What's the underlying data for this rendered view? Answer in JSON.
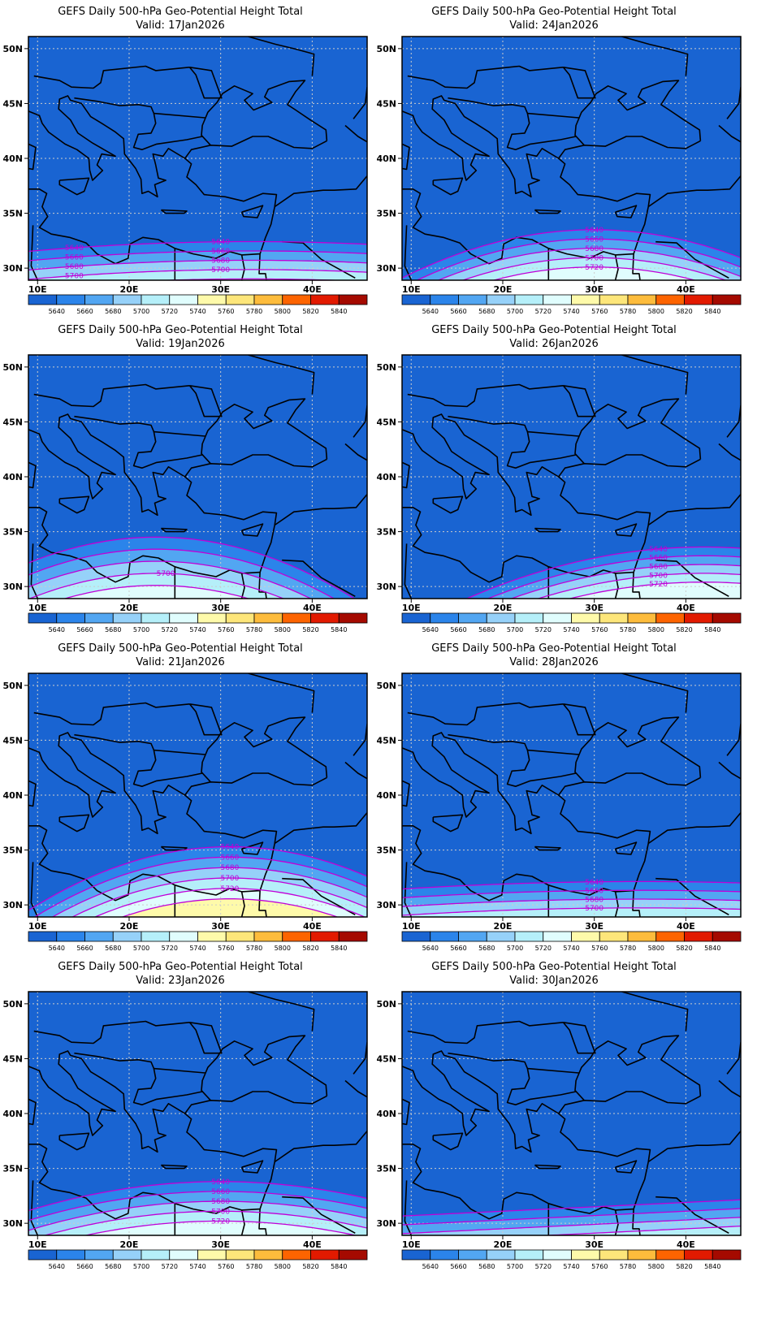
{
  "title": "GEFS Daily 500-hPa Geo-Potential Height Total",
  "valid_prefix": "Valid:",
  "lat_labels": [
    "30N",
    "35N",
    "40N",
    "45N",
    "50N"
  ],
  "lon_labels": [
    "10E",
    "20E",
    "30E",
    "40E"
  ],
  "colorbar": {
    "labels": [
      "5640",
      "5660",
      "5680",
      "5700",
      "5720",
      "5740",
      "5760",
      "5780",
      "5800",
      "5820",
      "5840"
    ],
    "colors": [
      "#1964d2",
      "#2b84ea",
      "#52a6f2",
      "#96d1f9",
      "#b5eff9",
      "#e0fdfd",
      "#fefaaa",
      "#fde67a",
      "#fdbc3c",
      "#fd6400",
      "#e21a00",
      "#a50a00"
    ]
  },
  "contour_color": "#c000d8",
  "panels": [
    {
      "valid": "17Jan2026",
      "contour_labels": [
        "5640",
        "5660",
        "5680",
        "5700",
        "5640",
        "5660",
        "5680",
        "5700"
      ]
    },
    {
      "valid": "24Jan2026",
      "contour_labels": [
        "5640",
        "5660",
        "5680",
        "5700",
        "5720"
      ]
    },
    {
      "valid": "19Jan2026",
      "contour_labels": [
        "5700"
      ]
    },
    {
      "valid": "26Jan2026",
      "contour_labels": [
        "5640",
        "5660",
        "5680",
        "5700",
        "5720"
      ]
    },
    {
      "valid": "21Jan2026",
      "contour_labels": [
        "5640",
        "5660",
        "5680",
        "5700",
        "5720"
      ]
    },
    {
      "valid": "28Jan2026",
      "contour_labels": [
        "5640",
        "5660",
        "5680",
        "5700"
      ]
    },
    {
      "valid": "23Jan2026",
      "contour_labels": [
        "5640",
        "5660",
        "5680",
        "5700",
        "5720"
      ]
    },
    {
      "valid": "30Jan2026",
      "contour_labels": []
    }
  ]
}
